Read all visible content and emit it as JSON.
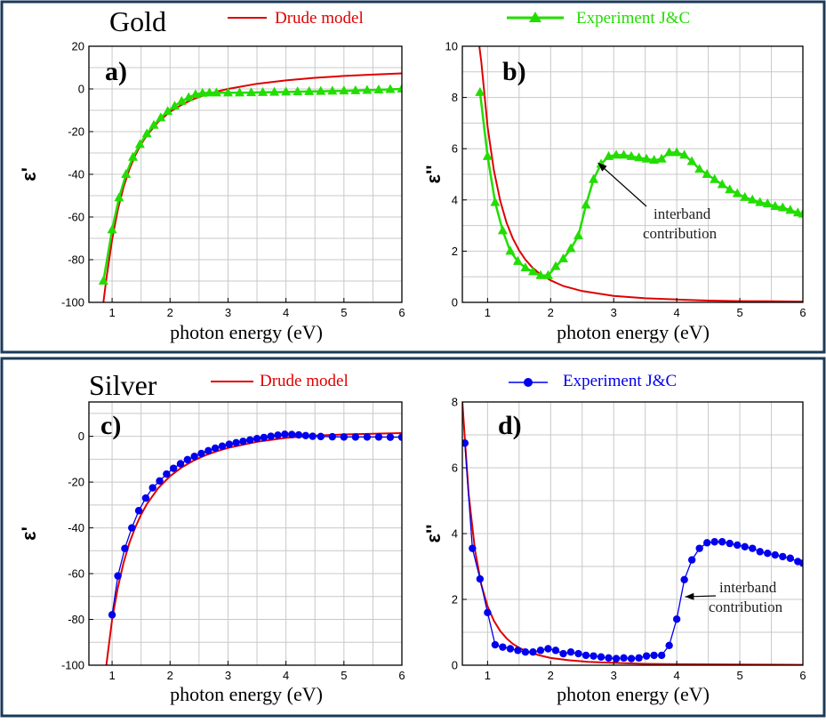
{
  "colors": {
    "drude": "#e00000",
    "gold_exp": "#22dd00",
    "silver_exp": "#0000ee",
    "grid": "#c8c8c8",
    "frame": "#1a3a5a"
  },
  "sections": [
    {
      "metal": "Gold",
      "legend": {
        "drude": "Drude model",
        "experiment": "Experiment J&C"
      }
    },
    {
      "metal": "Silver",
      "legend": {
        "drude": "Drude model",
        "experiment": "Experiment J&C"
      }
    }
  ],
  "chart_data": [
    {
      "panel": "a)",
      "type": "line",
      "xlabel": "photon energy (eV)",
      "ylabel": "ε'",
      "xlim": [
        0.6,
        6
      ],
      "ylim": [
        -100,
        20
      ],
      "xticks": [
        1,
        2,
        3,
        4,
        5,
        6
      ],
      "yticks": [
        -100,
        -80,
        -60,
        -40,
        -20,
        0,
        20
      ],
      "grid": true,
      "series": [
        {
          "name": "Drude model",
          "style": "line",
          "color": "#e00000",
          "x": [
            0.85,
            0.9,
            1.0,
            1.1,
            1.2,
            1.3,
            1.4,
            1.5,
            1.6,
            1.8,
            2.0,
            2.2,
            2.4,
            2.6,
            2.8,
            3.0,
            3.5,
            4.0,
            4.5,
            5.0,
            5.5,
            6.0
          ],
          "y": [
            -100,
            -89,
            -70.6,
            -56.4,
            -45.8,
            -37.6,
            -31.1,
            -25.9,
            -21.7,
            -15.3,
            -10.7,
            -7.4,
            -4.8,
            -2.8,
            -1.3,
            0,
            2.4,
            4.0,
            5.2,
            6.1,
            6.7,
            7.3
          ]
        },
        {
          "name": "Experiment J&C",
          "style": "line-marker",
          "marker": "triangle",
          "color": "#22dd00",
          "x": [
            0.85,
            1.0,
            1.12,
            1.24,
            1.36,
            1.48,
            1.6,
            1.72,
            1.84,
            1.96,
            2.08,
            2.2,
            2.32,
            2.44,
            2.56,
            2.68,
            2.8,
            3.0,
            3.2,
            3.4,
            3.6,
            3.8,
            4.0,
            4.2,
            4.4,
            4.6,
            4.8,
            5.0,
            5.2,
            5.4,
            5.6,
            5.8,
            6.0
          ],
          "y": [
            -90,
            -66,
            -51,
            -40,
            -32,
            -26,
            -21,
            -17,
            -13.5,
            -10.5,
            -8,
            -5.8,
            -4,
            -2.6,
            -2.0,
            -1.8,
            -1.8,
            -1.8,
            -1.8,
            -1.7,
            -1.6,
            -1.5,
            -1.4,
            -1.3,
            -1.2,
            -1.1,
            -1.0,
            -0.9,
            -0.8,
            -0.6,
            -0.4,
            -0.2,
            0
          ]
        }
      ]
    },
    {
      "panel": "b)",
      "type": "line",
      "xlabel": "photon energy (eV)",
      "ylabel": "ε''",
      "xlim": [
        0.6,
        6
      ],
      "ylim": [
        0,
        10
      ],
      "xticks": [
        1,
        2,
        3,
        4,
        5,
        6
      ],
      "yticks": [
        0,
        2,
        4,
        6,
        8,
        10
      ],
      "grid": true,
      "annotation": {
        "line1": "interband",
        "line2": "contribution",
        "arrow_to": [
          2.75,
          5.45
        ]
      },
      "series": [
        {
          "name": "Drude model",
          "style": "line",
          "color": "#e00000",
          "x": [
            0.87,
            0.9,
            1.0,
            1.1,
            1.2,
            1.3,
            1.4,
            1.5,
            1.6,
            1.7,
            1.8,
            2.0,
            2.2,
            2.5,
            3.0,
            3.5,
            4.0,
            4.5,
            5.0,
            5.5,
            6.0
          ],
          "y": [
            10,
            9.4,
            6.85,
            5.15,
            3.97,
            3.12,
            2.5,
            2.03,
            1.67,
            1.39,
            1.17,
            0.86,
            0.64,
            0.44,
            0.25,
            0.16,
            0.11,
            0.07,
            0.05,
            0.04,
            0.03
          ]
        },
        {
          "name": "Experiment J&C",
          "style": "line-marker",
          "marker": "triangle",
          "color": "#22dd00",
          "x": [
            0.88,
            1.0,
            1.12,
            1.24,
            1.36,
            1.48,
            1.6,
            1.72,
            1.84,
            1.96,
            2.08,
            2.2,
            2.32,
            2.44,
            2.56,
            2.68,
            2.8,
            2.92,
            3.04,
            3.16,
            3.28,
            3.4,
            3.52,
            3.64,
            3.76,
            3.88,
            4.0,
            4.12,
            4.24,
            4.36,
            4.48,
            4.6,
            4.72,
            4.84,
            4.96,
            5.08,
            5.2,
            5.32,
            5.44,
            5.56,
            5.68,
            5.8,
            5.92,
            6.0
          ],
          "y": [
            8.2,
            5.7,
            3.9,
            2.8,
            2.0,
            1.6,
            1.35,
            1.2,
            1.05,
            1.05,
            1.4,
            1.7,
            2.1,
            2.6,
            3.8,
            4.8,
            5.4,
            5.7,
            5.75,
            5.75,
            5.7,
            5.65,
            5.6,
            5.55,
            5.6,
            5.85,
            5.85,
            5.75,
            5.5,
            5.2,
            5.0,
            4.8,
            4.6,
            4.4,
            4.25,
            4.1,
            4.0,
            3.9,
            3.85,
            3.75,
            3.7,
            3.6,
            3.5,
            3.45
          ]
        }
      ]
    },
    {
      "panel": "c)",
      "type": "line",
      "xlabel": "photon energy (eV)",
      "ylabel": "ε'",
      "xlim": [
        0.6,
        6
      ],
      "ylim": [
        -100,
        15
      ],
      "xticks": [
        1,
        2,
        3,
        4,
        5,
        6
      ],
      "yticks": [
        -100,
        -80,
        -60,
        -40,
        -20,
        0
      ],
      "grid": true,
      "series": [
        {
          "name": "Drude model",
          "style": "line",
          "color": "#e00000",
          "x": [
            0.9,
            1.0,
            1.1,
            1.2,
            1.3,
            1.4,
            1.5,
            1.6,
            1.8,
            2.0,
            2.2,
            2.4,
            2.6,
            2.8,
            3.0,
            3.5,
            4.0,
            4.5,
            5.0,
            5.5,
            6.0
          ],
          "y": [
            -100,
            -80,
            -66,
            -55,
            -46.5,
            -39.8,
            -34.2,
            -29.6,
            -22.5,
            -17.4,
            -13.6,
            -10.7,
            -8.4,
            -6.6,
            -5.1,
            -2.4,
            -0.7,
            0.3,
            0.8,
            1.1,
            1.4
          ]
        },
        {
          "name": "Experiment J&C",
          "style": "line-marker",
          "marker": "circle",
          "color": "#0000ee",
          "x": [
            1.0,
            1.1,
            1.22,
            1.34,
            1.46,
            1.58,
            1.7,
            1.82,
            1.94,
            2.06,
            2.18,
            2.3,
            2.42,
            2.54,
            2.66,
            2.78,
            2.9,
            3.02,
            3.14,
            3.26,
            3.38,
            3.5,
            3.62,
            3.74,
            3.86,
            3.98,
            4.1,
            4.22,
            4.34,
            4.46,
            4.6,
            4.8,
            5.0,
            5.2,
            5.4,
            5.6,
            5.8,
            6.0
          ],
          "y": [
            -78,
            -61,
            -49,
            -40,
            -32.5,
            -27,
            -22.5,
            -19.5,
            -16.5,
            -14,
            -12,
            -10.2,
            -8.8,
            -7.5,
            -6.3,
            -5.2,
            -4.3,
            -3.5,
            -2.8,
            -2.2,
            -1.6,
            -1.0,
            -0.5,
            0,
            0.5,
            0.9,
            0.8,
            0.6,
            0.3,
            0,
            -0.1,
            -0.2,
            -0.3,
            -0.3,
            -0.3,
            -0.3,
            -0.4,
            -0.4
          ]
        }
      ]
    },
    {
      "panel": "d)",
      "type": "line",
      "xlabel": "photon energy (eV)",
      "ylabel": "ε''",
      "xlim": [
        0.6,
        6
      ],
      "ylim": [
        0,
        8
      ],
      "xticks": [
        1,
        2,
        3,
        4,
        5,
        6
      ],
      "yticks": [
        0,
        2,
        4,
        6,
        8
      ],
      "grid": true,
      "annotation": {
        "line1": "interband",
        "line2": "contribution",
        "arrow_to": [
          4.13,
          2.08
        ]
      },
      "series": [
        {
          "name": "Drude model",
          "style": "line",
          "color": "#e00000",
          "x": [
            0.6,
            0.7,
            0.8,
            0.9,
            1.0,
            1.1,
            1.2,
            1.3,
            1.4,
            1.5,
            1.6,
            1.8,
            2.0,
            2.3,
            2.6,
            3.0,
            3.5,
            4.0,
            5.0,
            6.0
          ],
          "y": [
            8,
            5.2,
            3.5,
            2.45,
            1.79,
            1.35,
            1.04,
            0.82,
            0.65,
            0.53,
            0.44,
            0.31,
            0.22,
            0.15,
            0.1,
            0.07,
            0.04,
            0.03,
            0.02,
            0.01
          ]
        },
        {
          "name": "Experiment J&C",
          "style": "line-marker",
          "marker": "circle",
          "color": "#0000ee",
          "x": [
            0.64,
            0.76,
            0.88,
            1.0,
            1.12,
            1.24,
            1.36,
            1.48,
            1.6,
            1.72,
            1.84,
            1.96,
            2.08,
            2.2,
            2.32,
            2.44,
            2.56,
            2.68,
            2.8,
            2.92,
            3.04,
            3.16,
            3.28,
            3.4,
            3.52,
            3.64,
            3.76,
            3.88,
            4.0,
            4.12,
            4.24,
            4.36,
            4.48,
            4.6,
            4.72,
            4.84,
            4.96,
            5.08,
            5.2,
            5.32,
            5.44,
            5.56,
            5.68,
            5.8,
            5.92,
            6.0
          ],
          "y": [
            6.75,
            3.55,
            2.62,
            1.6,
            0.62,
            0.55,
            0.5,
            0.45,
            0.4,
            0.4,
            0.45,
            0.5,
            0.45,
            0.35,
            0.4,
            0.35,
            0.3,
            0.28,
            0.25,
            0.22,
            0.2,
            0.22,
            0.2,
            0.22,
            0.28,
            0.3,
            0.3,
            0.6,
            1.4,
            2.6,
            3.2,
            3.55,
            3.72,
            3.75,
            3.75,
            3.7,
            3.65,
            3.6,
            3.55,
            3.45,
            3.4,
            3.35,
            3.3,
            3.25,
            3.15,
            3.1
          ]
        }
      ]
    }
  ]
}
